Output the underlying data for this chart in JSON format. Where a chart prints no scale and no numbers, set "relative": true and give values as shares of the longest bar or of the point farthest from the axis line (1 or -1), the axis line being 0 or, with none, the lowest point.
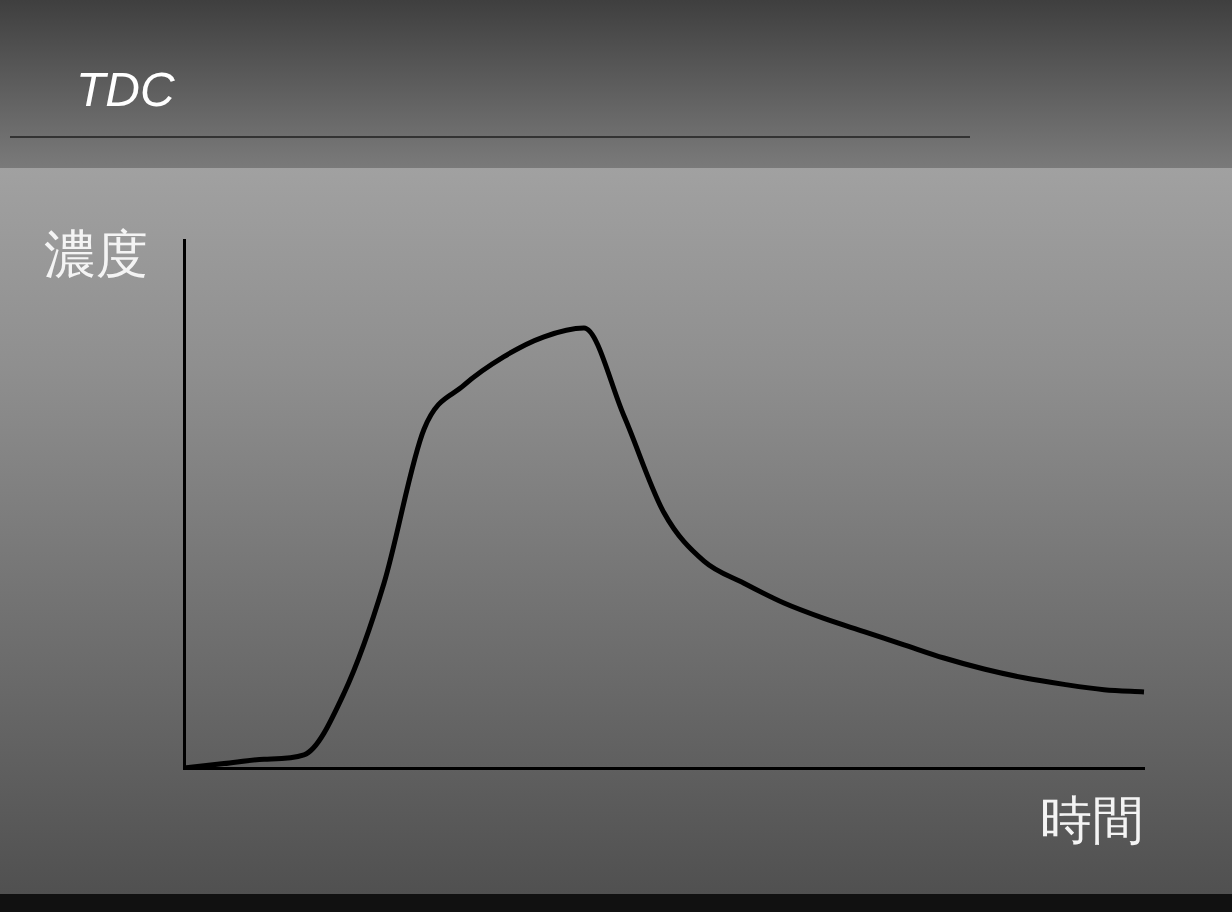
{
  "chart_data": {
    "type": "line",
    "title": "TDC",
    "xlabel": "時間",
    "ylabel": "濃度",
    "relative": true,
    "categories": [
      null,
      null,
      null,
      null,
      null,
      null,
      null,
      null,
      null,
      null,
      null,
      null,
      null,
      null,
      null,
      null,
      null,
      null,
      null,
      null,
      null,
      null,
      null,
      null,
      null
    ],
    "series": [
      {
        "color": "#000000",
        "values": [
          0,
          0.01,
          0.02,
          0.03,
          0.17,
          0.42,
          0.77,
          0.87,
          0.935,
          0.98,
          1.0,
          0.8,
          0.58,
          0.47,
          0.42,
          0.375,
          0.34,
          0.31,
          0.28,
          0.25,
          0.225,
          0.205,
          0.19,
          0.178,
          0.173
        ]
      }
    ],
    "grid": false,
    "legend": false,
    "marker": "none",
    "line_style": "solid"
  }
}
